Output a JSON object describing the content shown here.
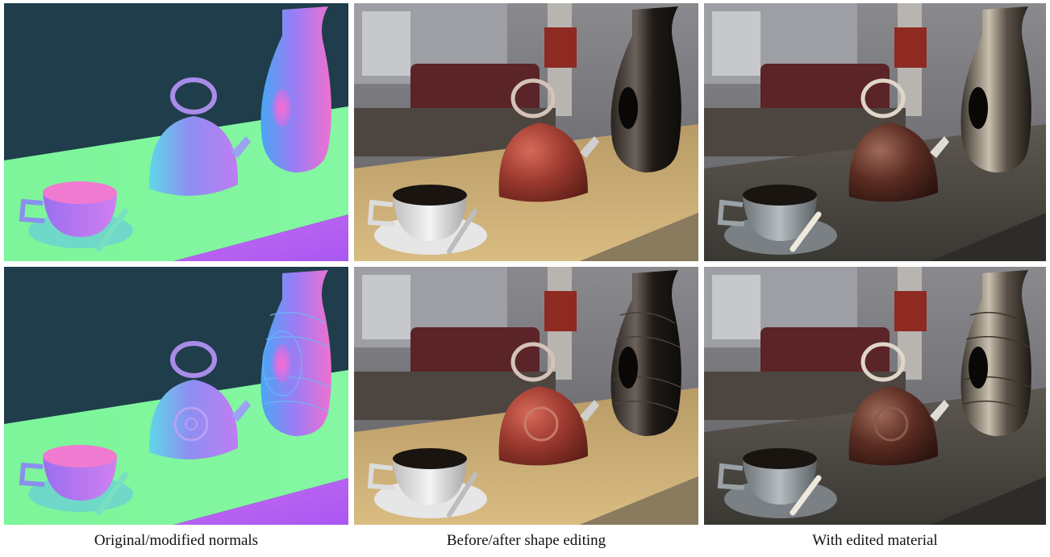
{
  "figure": {
    "columns": [
      {
        "caption": "Original/modified normals",
        "content": "normal-map renders"
      },
      {
        "caption": "Before/after shape editing",
        "content": "photoreal renders, red kettle"
      },
      {
        "caption": "With edited material",
        "content": "photoreal renders, dark metallic materials"
      }
    ],
    "rows": [
      "original",
      "modified"
    ]
  }
}
